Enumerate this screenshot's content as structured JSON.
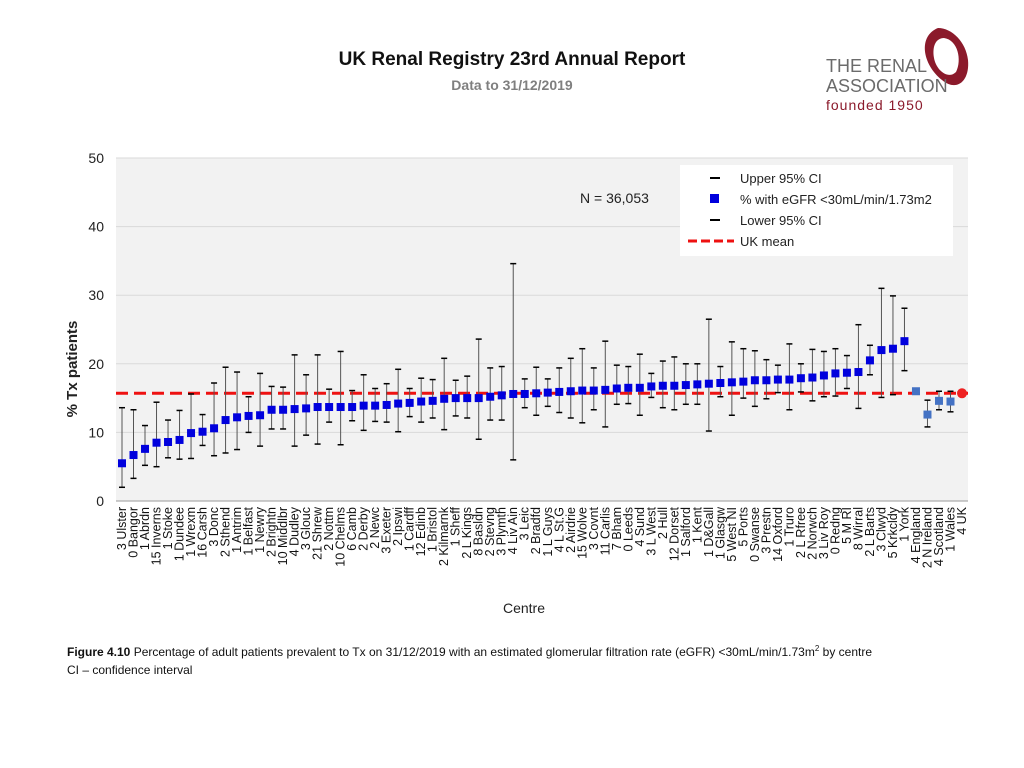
{
  "header": {
    "title": "UK Renal Registry 23rd Annual Report",
    "subtitle": "Data to 31/12/2019"
  },
  "logo": {
    "line1": "THE RENAL",
    "line2": "ASSOCIATION",
    "line3": "founded 1950",
    "brand_color": "#8b1a2b"
  },
  "caption": {
    "figure_label": "Figure 4.10",
    "text": "Percentage of adult patients prevalent to Tx on 31/12/2019 with an estimated glomerular filtration rate (eGFR) <30mL/min/1.73m",
    "superscript": "2",
    "suffix": " by centre",
    "note": "CI – confidence interval"
  },
  "chart_data": {
    "type": "scatter",
    "subtype": "errorbar",
    "xlabel": "Centre",
    "ylabel": "% Tx patients",
    "ylim": [
      0,
      50
    ],
    "yticks": [
      0,
      10,
      20,
      30,
      40,
      50
    ],
    "grid": true,
    "annotation": "N = 36,053",
    "uk_mean": 15.7,
    "colors": {
      "centre": "#0000dd",
      "nation": "#4472c4",
      "uk": "#ee2222",
      "mean_line": "#ee1111",
      "grid": "#d9d9d9",
      "plot_bg": "#f2f2f2"
    },
    "legend": {
      "position": "top-right",
      "entries": [
        "Upper 95% CI",
        "% with eGFR <30mL/min/1.73m2",
        "Lower 95% CI",
        "UK mean"
      ]
    },
    "categories": [
      "3 Ulster",
      "0 Bangor",
      "1 Abrdn",
      "15 Inverns",
      "1 Stoke",
      "1 Dundee",
      "1 Wrexm",
      "16 Carsh",
      "3 Donc",
      "2 Sthend",
      "1 Antrim",
      "1 Belfast",
      "1 Newry",
      "2 Brightn",
      "10 Middlbr",
      "4 Dudley",
      "3 Glouc",
      "21 Shrew",
      "2 Nottm",
      "10 Chelms",
      "6 Camb",
      "2 Derby",
      "2 Newc",
      "3 Exeter",
      "2 Ipswi",
      "1 Cardff",
      "12 Edinb",
      "1 Bristol",
      "2 Kilmarnk",
      "1 Sheff",
      "2 L Kings",
      "8 Basldn",
      "2 Stevng",
      "3 Plymth",
      "4 Liv Ain",
      "3 Leic",
      "2 Bradfd",
      "1 L Guys",
      "4 L St.G",
      "2 Airdrie",
      "15 Wolve",
      "3 Covnt",
      "11 Carlis",
      "7 Bham",
      "0 Leeds",
      "4 Sund",
      "3 L West",
      "2 Hull",
      "12 Dorset",
      "1 Salford",
      "1 Kent",
      "1 D&Gall",
      "1 Glasgw",
      "5 West NI",
      "5 Ports",
      "0 Swanse",
      "3 Prestn",
      "14 Oxford",
      "1 Truro",
      "2 L Rfree",
      "2 Norwch",
      "3 Liv Roy",
      "0 Redng",
      "5 M RI",
      "8 Wirral",
      "2 L Barts",
      "3 Clwyd",
      "5 Krkcldy",
      "1 York",
      "4 England",
      "2 N Ireland",
      "4 Scotland",
      "1 Wales",
      "4 UK"
    ],
    "series": [
      {
        "name": "% with eGFR <30mL/min/1.73m2",
        "values": [
          5.5,
          6.7,
          7.6,
          8.5,
          8.6,
          8.9,
          9.9,
          10.1,
          10.6,
          11.8,
          12.2,
          12.4,
          12.5,
          13.3,
          13.3,
          13.4,
          13.5,
          13.7,
          13.7,
          13.7,
          13.7,
          13.9,
          13.9,
          14.0,
          14.2,
          14.3,
          14.5,
          14.6,
          14.9,
          15.0,
          15.0,
          15.0,
          15.2,
          15.4,
          15.6,
          15.6,
          15.7,
          15.8,
          15.9,
          16.0,
          16.1,
          16.1,
          16.2,
          16.4,
          16.5,
          16.5,
          16.7,
          16.8,
          16.8,
          16.9,
          17.0,
          17.1,
          17.2,
          17.3,
          17.4,
          17.6,
          17.6,
          17.7,
          17.7,
          17.9,
          18.0,
          18.3,
          18.6,
          18.7,
          18.8,
          20.5,
          22.0,
          22.2,
          23.3,
          16.0,
          12.6,
          14.6,
          14.5,
          15.7
        ]
      },
      {
        "name": "Upper 95% CI",
        "values": [
          13.6,
          13.3,
          11.0,
          14.4,
          11.8,
          13.2,
          15.6,
          12.6,
          17.2,
          19.5,
          18.8,
          15.2,
          18.6,
          16.7,
          16.6,
          21.3,
          18.4,
          21.3,
          16.3,
          21.8,
          16.1,
          18.4,
          16.4,
          17.1,
          19.2,
          16.4,
          17.9,
          17.7,
          20.8,
          17.6,
          18.2,
          23.6,
          19.4,
          19.6,
          34.6,
          17.8,
          19.5,
          17.8,
          19.4,
          20.8,
          22.2,
          19.4,
          23.3,
          19.8,
          19.6,
          21.4,
          18.6,
          20.4,
          21.0,
          20.0,
          20.0,
          26.5,
          19.6,
          23.2,
          22.2,
          21.9,
          20.6,
          19.8,
          22.9,
          20.0,
          22.1,
          21.8,
          22.2,
          21.2,
          25.7,
          22.7,
          31.0,
          29.9,
          28.1,
          16.2,
          14.7,
          16.0,
          16.0,
          16.0
        ]
      },
      {
        "name": "Lower 95% CI",
        "values": [
          2.0,
          3.3,
          5.2,
          5.0,
          6.3,
          6.1,
          6.2,
          8.1,
          6.6,
          7.0,
          7.5,
          10.0,
          8.0,
          10.5,
          10.5,
          8.0,
          9.6,
          8.3,
          11.5,
          8.2,
          11.7,
          10.3,
          11.6,
          11.5,
          10.1,
          12.3,
          11.5,
          12.1,
          10.4,
          12.4,
          12.1,
          9.0,
          11.8,
          11.8,
          6.0,
          13.6,
          12.5,
          13.8,
          12.9,
          12.1,
          11.4,
          13.3,
          10.8,
          14.1,
          14.2,
          12.5,
          15.1,
          13.6,
          13.3,
          14.1,
          14.1,
          10.2,
          15.2,
          12.5,
          15.0,
          13.8,
          14.9,
          15.8,
          13.3,
          15.9,
          14.6,
          15.2,
          15.3,
          16.4,
          13.5,
          18.4,
          15.1,
          15.5,
          19.0,
          15.8,
          10.8,
          13.3,
          13.0,
          15.4
        ]
      }
    ],
    "point_groups": [
      "centre",
      "centre",
      "centre",
      "centre",
      "centre",
      "centre",
      "centre",
      "centre",
      "centre",
      "centre",
      "centre",
      "centre",
      "centre",
      "centre",
      "centre",
      "centre",
      "centre",
      "centre",
      "centre",
      "centre",
      "centre",
      "centre",
      "centre",
      "centre",
      "centre",
      "centre",
      "centre",
      "centre",
      "centre",
      "centre",
      "centre",
      "centre",
      "centre",
      "centre",
      "centre",
      "centre",
      "centre",
      "centre",
      "centre",
      "centre",
      "centre",
      "centre",
      "centre",
      "centre",
      "centre",
      "centre",
      "centre",
      "centre",
      "centre",
      "centre",
      "centre",
      "centre",
      "centre",
      "centre",
      "centre",
      "centre",
      "centre",
      "centre",
      "centre",
      "centre",
      "centre",
      "centre",
      "centre",
      "centre",
      "centre",
      "centre",
      "centre",
      "centre",
      "centre",
      "nation",
      "nation",
      "nation",
      "nation",
      "uk"
    ]
  }
}
